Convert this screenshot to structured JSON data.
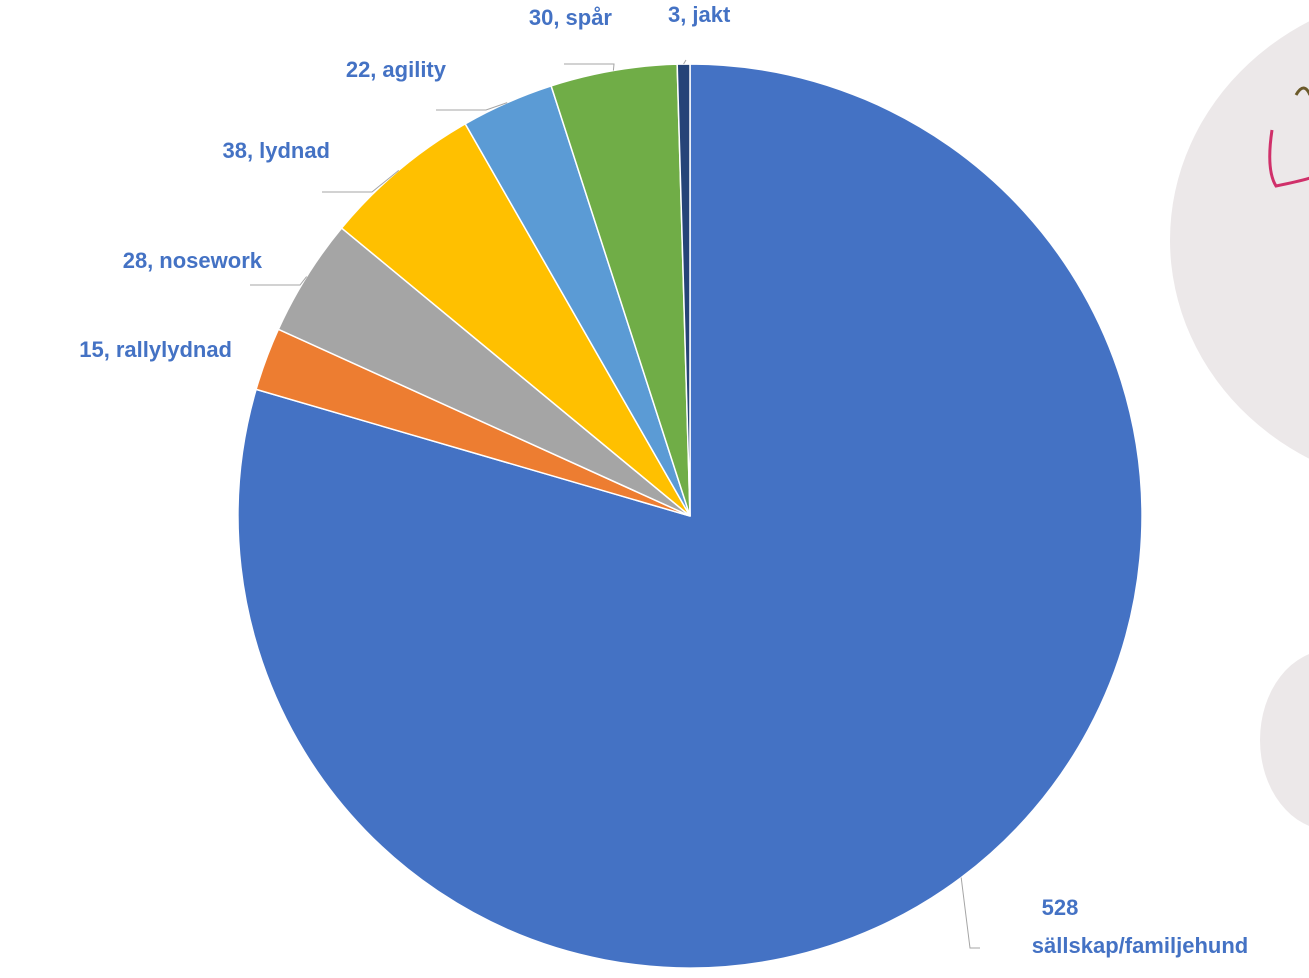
{
  "chart_data": {
    "type": "pie",
    "categories": [
      "sällskap/familjehund",
      "rallylydnad",
      "nosework",
      "lydnad",
      "agility",
      "spår",
      "jakt"
    ],
    "values": [
      528,
      15,
      28,
      38,
      22,
      30,
      3
    ],
    "value_labels": [
      "528",
      "15,",
      "28,",
      "38,",
      "22,",
      "30,",
      "3,"
    ],
    "colors": [
      "#4472c4",
      "#ed7d31",
      "#a5a5a5",
      "#ffc000",
      "#5b9bd5",
      "#70ad47",
      "#264478"
    ],
    "label_color": "#4472c4"
  }
}
